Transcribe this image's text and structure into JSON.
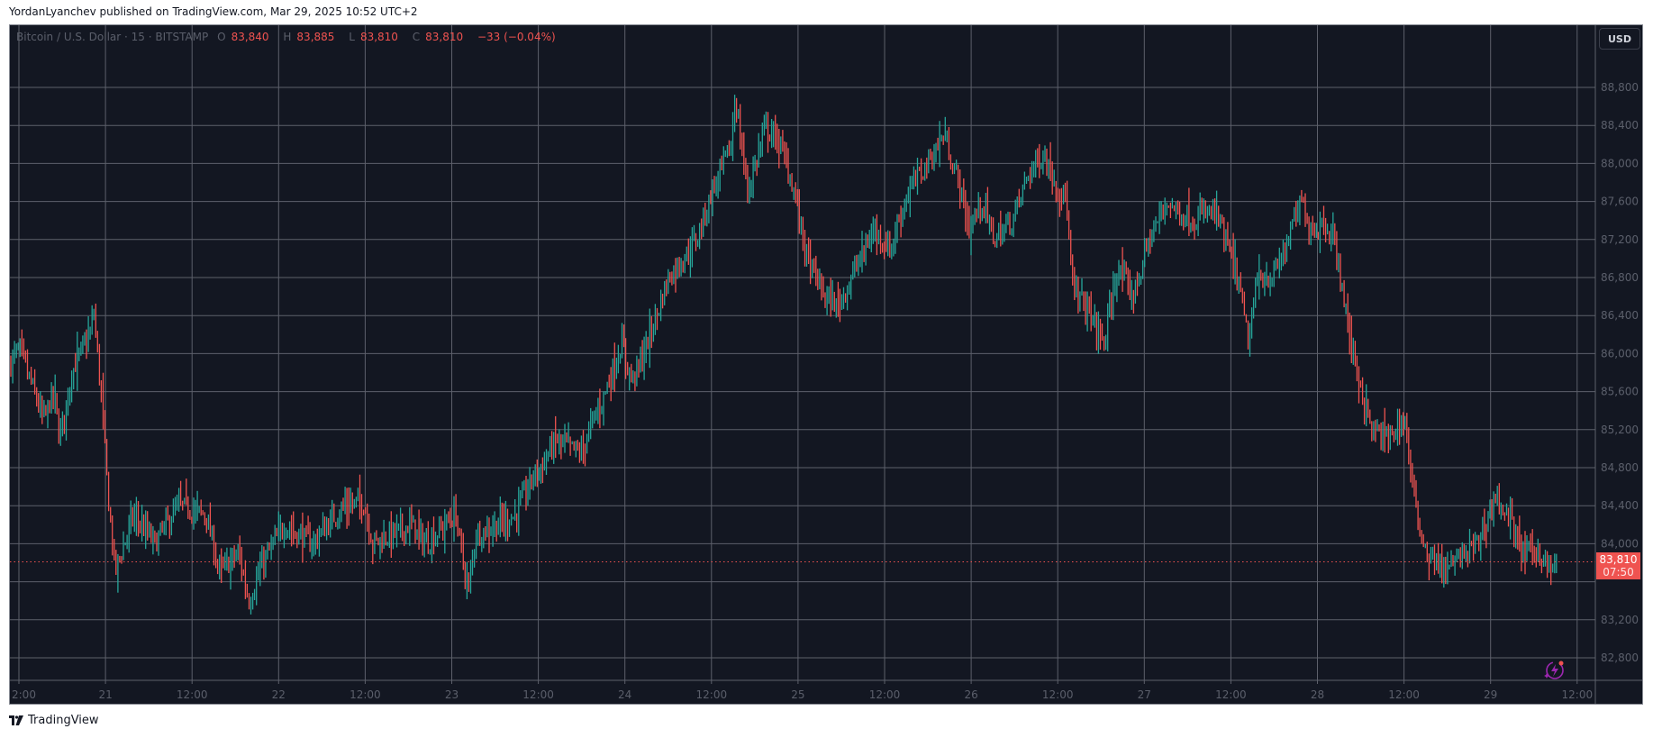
{
  "header": {
    "publish_line": "YordanLyanchev published on TradingView.com, Mar 29, 2025 10:52 UTC+2"
  },
  "legend": {
    "symbol": "Bitcoin / U.S. Dollar · 15 · BITSTAMP",
    "o_label": "O",
    "o_value": "83,840",
    "h_label": "H",
    "h_value": "83,885",
    "l_label": "L",
    "l_value": "83,810",
    "c_label": "C",
    "c_value": "83,810",
    "change": "−33 (−0.04%)"
  },
  "price_axis": {
    "currency_button": "USD",
    "last_price": "83,810",
    "countdown": "07:50"
  },
  "footer": {
    "brand": "TradingView"
  },
  "colors": {
    "background": "#131722",
    "grid": "#5d606b",
    "up": "#26a69a",
    "down": "#ef5350",
    "axis_text": "#5b5f6b",
    "price_line": "#ef5350",
    "bolt_icon": "#9c27b0"
  },
  "chart_data": {
    "type": "ohlc",
    "title": "Bitcoin / U.S. Dollar · 15 · BITSTAMP",
    "interval": "15",
    "xlabel": "",
    "ylabel": "USD",
    "ylim": [
      82600,
      89000
    ],
    "grid": true,
    "y_ticks": [
      88800,
      88400,
      88000,
      87600,
      87200,
      86800,
      86400,
      86000,
      85600,
      85200,
      84800,
      84400,
      84000,
      83200,
      82800
    ],
    "x_ticks": [
      "2:00",
      "21",
      "12:00",
      "22",
      "12:00",
      "23",
      "12:00",
      "24",
      "12:00",
      "25",
      "12:00",
      "26",
      "12:00",
      "27",
      "12:00",
      "28",
      "12:00",
      "29",
      "12:00"
    ],
    "last_price": 83810,
    "ohlc_last": {
      "open": 83840,
      "high": 83885,
      "low": 83810,
      "close": 83810,
      "change": -33,
      "change_pct": -0.04
    },
    "key_points": [
      {
        "x": "Mar 20 12:00",
        "price": 85900
      },
      {
        "x": "Mar 20 ~17:00",
        "price": 86400
      },
      {
        "x": "Mar 20 ~19:00",
        "price": 83700
      },
      {
        "x": "Mar 21 ~09:00",
        "price": 84800
      },
      {
        "x": "Mar 22 ~03:00",
        "price": 83100
      },
      {
        "x": "Mar 22 ~12:00",
        "price": 84400
      },
      {
        "x": "Mar 23 ~03:00",
        "price": 83700
      },
      {
        "x": "Mar 23 ~20:00",
        "price": 84600
      },
      {
        "x": "Mar 24 ~09:00",
        "price": 85800
      },
      {
        "x": "Mar 24 ~14:00",
        "price": 87600
      },
      {
        "x": "Mar 24 ~16:00",
        "price": 88750
      },
      {
        "x": "Mar 25 ~00:00",
        "price": 88100
      },
      {
        "x": "Mar 25 ~06:00",
        "price": 86400
      },
      {
        "x": "Mar 25 ~18:00",
        "price": 88300
      },
      {
        "x": "Mar 26 ~00:00",
        "price": 88500
      },
      {
        "x": "Mar 26 ~06:00",
        "price": 87200
      },
      {
        "x": "Mar 26 ~11:00",
        "price": 88200
      },
      {
        "x": "Mar 26 ~19:00",
        "price": 85900
      },
      {
        "x": "Mar 27 ~06:00",
        "price": 87600
      },
      {
        "x": "Mar 27 ~14:00",
        "price": 87400
      },
      {
        "x": "Mar 27 ~18:00",
        "price": 85900
      },
      {
        "x": "Mar 28 ~00:00",
        "price": 87700
      },
      {
        "x": "Mar 28 ~09:00",
        "price": 85300
      },
      {
        "x": "Mar 28 ~12:00",
        "price": 85500
      },
      {
        "x": "Mar 28 ~18:00",
        "price": 83600
      },
      {
        "x": "Mar 29 ~03:00",
        "price": 84500
      },
      {
        "x": "Mar 29 ~10:45",
        "price": 83810
      }
    ]
  }
}
